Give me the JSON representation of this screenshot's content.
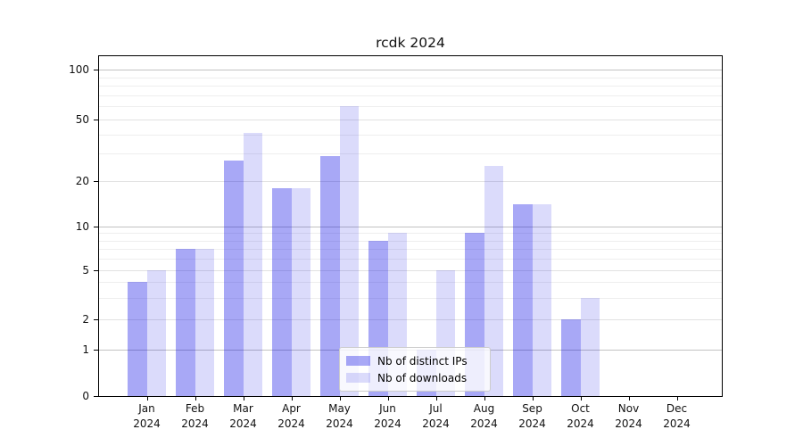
{
  "chart_data": {
    "type": "bar",
    "title": "rcdk 2024",
    "categories": [
      "Jan 2024",
      "Feb 2024",
      "Mar 2024",
      "Apr 2024",
      "May 2024",
      "Jun 2024",
      "Jul 2024",
      "Aug 2024",
      "Sep 2024",
      "Oct 2024",
      "Nov 2024",
      "Dec 2024"
    ],
    "series": [
      {
        "name": "Nb of distinct IPs",
        "color": "rgba(0,0,230,0.34)",
        "solid_color": "#a9a9f5",
        "values": [
          4,
          7,
          27,
          18,
          29,
          8,
          1,
          9,
          14,
          2,
          0,
          0
        ]
      },
      {
        "name": "Nb of downloads",
        "color": "rgba(0,0,230,0.14)",
        "solid_color": "#dcdcf9",
        "values": [
          5,
          7,
          41,
          18,
          60,
          9,
          5,
          25,
          14,
          3,
          0,
          0
        ]
      }
    ],
    "y_axis": {
      "scale": "log-with-zero-baseline",
      "ticks": [
        0,
        1,
        2,
        5,
        10,
        20,
        50,
        100
      ],
      "minor_gridlines": [
        3,
        4,
        6,
        7,
        8,
        9,
        30,
        40,
        60,
        70,
        80,
        90
      ],
      "ylim": [
        0,
        130
      ]
    },
    "x_axis": {
      "year_line": "2024"
    },
    "grid": "horizontal",
    "legend": {
      "position": "lower center"
    }
  }
}
